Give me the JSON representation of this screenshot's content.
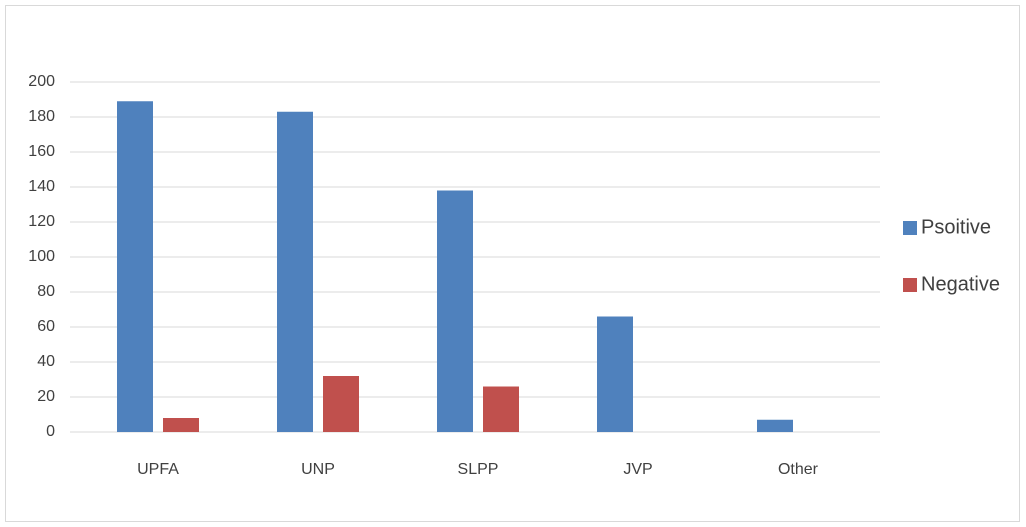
{
  "chart_data": {
    "type": "bar",
    "categories": [
      "UPFA",
      "UNP",
      "SLPP",
      "JVP",
      "Other"
    ],
    "series": [
      {
        "name": "Psoitive",
        "color": "#4f81bd",
        "values": [
          189,
          183,
          138,
          66,
          7
        ]
      },
      {
        "name": "Negative",
        "color": "#c0504d",
        "values": [
          8,
          32,
          26,
          0,
          0
        ]
      }
    ],
    "ylim": [
      0,
      200
    ],
    "yticks": [
      0,
      20,
      40,
      60,
      80,
      100,
      120,
      140,
      160,
      180,
      200
    ],
    "grid": true,
    "legend": "right"
  }
}
